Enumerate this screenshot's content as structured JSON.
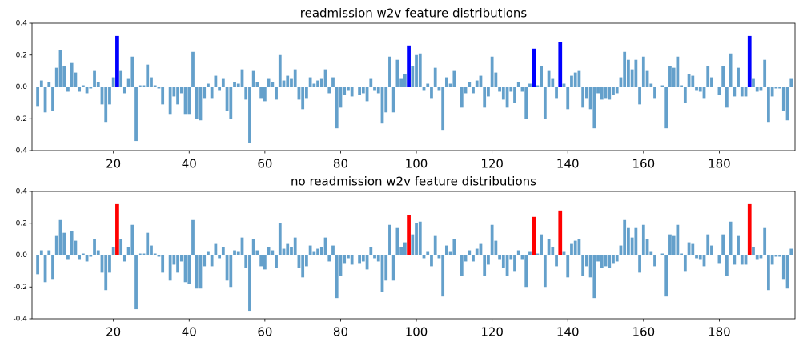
{
  "chart_data": [
    {
      "type": "bar",
      "title": "readmission w2v feature distributions",
      "color": "#64a0cb",
      "highlight_color": "#0000ff",
      "highlight": [
        21,
        98,
        131,
        138,
        188
      ],
      "x": [
        0,
        1,
        2,
        3,
        4,
        5,
        6,
        7,
        8,
        9,
        10,
        11,
        12,
        13,
        14,
        15,
        16,
        17,
        18,
        19,
        20,
        21,
        22,
        23,
        24,
        25,
        26,
        27,
        28,
        29,
        30,
        31,
        32,
        33,
        34,
        35,
        36,
        37,
        38,
        39,
        40,
        41,
        42,
        43,
        44,
        45,
        46,
        47,
        48,
        49,
        50,
        51,
        52,
        53,
        54,
        55,
        56,
        57,
        58,
        59,
        60,
        61,
        62,
        63,
        64,
        65,
        66,
        67,
        68,
        69,
        70,
        71,
        72,
        73,
        74,
        75,
        76,
        77,
        78,
        79,
        80,
        81,
        82,
        83,
        84,
        85,
        86,
        87,
        88,
        89,
        90,
        91,
        92,
        93,
        94,
        95,
        96,
        97,
        98,
        99,
        100,
        101,
        102,
        103,
        104,
        105,
        106,
        107,
        108,
        109,
        110,
        111,
        112,
        113,
        114,
        115,
        116,
        117,
        118,
        119,
        120,
        121,
        122,
        123,
        124,
        125,
        126,
        127,
        128,
        129,
        130,
        131,
        132,
        133,
        134,
        135,
        136,
        137,
        138,
        139,
        140,
        141,
        142,
        143,
        144,
        145,
        146,
        147,
        148,
        149,
        150,
        151,
        152,
        153,
        154,
        155,
        156,
        157,
        158,
        159,
        160,
        161,
        162,
        163,
        164,
        165,
        166,
        167,
        168,
        169,
        170,
        171,
        172,
        173,
        174,
        175,
        176,
        177,
        178,
        179,
        180,
        181,
        182,
        183,
        184,
        185,
        186,
        187,
        188,
        189,
        190,
        191,
        192,
        193,
        194,
        195,
        196,
        197,
        198,
        199
      ],
      "values": [
        -0.12,
        0.04,
        -0.16,
        0.03,
        -0.15,
        0.12,
        0.23,
        0.13,
        -0.03,
        0.15,
        0.09,
        -0.03,
        0.01,
        -0.04,
        -0.01,
        0.1,
        0.03,
        -0.11,
        -0.22,
        -0.11,
        0.06,
        0.32,
        0.1,
        -0.04,
        0.05,
        0.19,
        -0.34,
        0.01,
        0.01,
        0.14,
        0.06,
        0.01,
        -0.01,
        -0.11,
        0.0,
        -0.17,
        -0.06,
        -0.11,
        -0.04,
        -0.17,
        -0.17,
        0.22,
        -0.2,
        -0.21,
        -0.07,
        0.02,
        -0.07,
        0.07,
        -0.02,
        0.05,
        -0.15,
        -0.2,
        0.03,
        0.02,
        0.11,
        -0.08,
        -0.35,
        0.1,
        0.03,
        -0.07,
        -0.09,
        0.05,
        0.03,
        -0.08,
        0.2,
        0.04,
        0.07,
        0.05,
        0.11,
        -0.08,
        -0.14,
        -0.07,
        0.06,
        0.02,
        0.04,
        0.05,
        0.11,
        -0.04,
        0.06,
        -0.26,
        -0.13,
        -0.05,
        -0.02,
        -0.06,
        0.0,
        -0.05,
        -0.04,
        -0.09,
        0.05,
        -0.02,
        -0.04,
        -0.23,
        -0.16,
        0.19,
        -0.16,
        0.17,
        0.05,
        0.08,
        0.26,
        0.13,
        0.2,
        0.21,
        -0.02,
        0.02,
        -0.07,
        0.12,
        -0.02,
        -0.27,
        0.06,
        0.02,
        0.1,
        0.0,
        -0.13,
        -0.04,
        0.03,
        -0.04,
        0.04,
        0.07,
        -0.13,
        -0.06,
        0.19,
        0.09,
        -0.03,
        -0.08,
        -0.13,
        -0.03,
        -0.1,
        0.03,
        -0.03,
        -0.2,
        0.02,
        0.24,
        0.01,
        0.13,
        -0.2,
        0.1,
        0.05,
        -0.07,
        0.28,
        0.02,
        -0.14,
        0.07,
        0.09,
        0.1,
        -0.13,
        -0.07,
        -0.14,
        -0.26,
        -0.04,
        -0.08,
        -0.07,
        -0.08,
        -0.05,
        -0.04,
        0.06,
        0.22,
        0.17,
        0.11,
        0.17,
        -0.11,
        0.19,
        0.1,
        0.02,
        -0.07,
        0.0,
        0.01,
        -0.26,
        0.13,
        0.12,
        0.19,
        0.01,
        -0.1,
        0.08,
        0.07,
        -0.02,
        -0.03,
        -0.07,
        0.13,
        0.06,
        0.0,
        -0.05,
        0.13,
        -0.13,
        0.21,
        -0.06,
        0.12,
        -0.06,
        -0.06,
        0.32,
        0.05,
        -0.03,
        -0.02,
        0.17,
        -0.22,
        -0.06,
        -0.01,
        -0.01,
        -0.15,
        -0.21,
        0.05
      ],
      "xlim": [
        -1.5,
        200
      ],
      "xticks": [
        20,
        40,
        60,
        80,
        100,
        120,
        140,
        160,
        180
      ],
      "ylim": [
        -0.4,
        0.4
      ],
      "yticks": [
        -0.4,
        -0.2,
        {
          "value": 0,
          "label": "0.0"
        },
        0.2,
        0.4
      ]
    },
    {
      "type": "bar",
      "title": "no readmission w2v feature distributions",
      "color": "#64a0cb",
      "highlight_color": "#ff0000",
      "highlight": [
        21,
        98,
        131,
        138,
        188
      ],
      "x": [
        0,
        1,
        2,
        3,
        4,
        5,
        6,
        7,
        8,
        9,
        10,
        11,
        12,
        13,
        14,
        15,
        16,
        17,
        18,
        19,
        20,
        21,
        22,
        23,
        24,
        25,
        26,
        27,
        28,
        29,
        30,
        31,
        32,
        33,
        34,
        35,
        36,
        37,
        38,
        39,
        40,
        41,
        42,
        43,
        44,
        45,
        46,
        47,
        48,
        49,
        50,
        51,
        52,
        53,
        54,
        55,
        56,
        57,
        58,
        59,
        60,
        61,
        62,
        63,
        64,
        65,
        66,
        67,
        68,
        69,
        70,
        71,
        72,
        73,
        74,
        75,
        76,
        77,
        78,
        79,
        80,
        81,
        82,
        83,
        84,
        85,
        86,
        87,
        88,
        89,
        90,
        91,
        92,
        93,
        94,
        95,
        96,
        97,
        98,
        99,
        100,
        101,
        102,
        103,
        104,
        105,
        106,
        107,
        108,
        109,
        110,
        111,
        112,
        113,
        114,
        115,
        116,
        117,
        118,
        119,
        120,
        121,
        122,
        123,
        124,
        125,
        126,
        127,
        128,
        129,
        130,
        131,
        132,
        133,
        134,
        135,
        136,
        137,
        138,
        139,
        140,
        141,
        142,
        143,
        144,
        145,
        146,
        147,
        148,
        149,
        150,
        151,
        152,
        153,
        154,
        155,
        156,
        157,
        158,
        159,
        160,
        161,
        162,
        163,
        164,
        165,
        166,
        167,
        168,
        169,
        170,
        171,
        172,
        173,
        174,
        175,
        176,
        177,
        178,
        179,
        180,
        181,
        182,
        183,
        184,
        185,
        186,
        187,
        188,
        189,
        190,
        191,
        192,
        193,
        194,
        195,
        196,
        197,
        198,
        199
      ],
      "values": [
        -0.12,
        0.03,
        -0.17,
        0.03,
        -0.15,
        0.12,
        0.22,
        0.14,
        -0.03,
        0.15,
        0.09,
        -0.03,
        0.01,
        -0.04,
        -0.01,
        0.1,
        0.03,
        -0.11,
        -0.22,
        -0.11,
        0.05,
        0.32,
        0.1,
        -0.04,
        0.05,
        0.19,
        -0.34,
        0.01,
        0.01,
        0.14,
        0.06,
        0.01,
        -0.01,
        -0.11,
        0.0,
        -0.16,
        -0.06,
        -0.11,
        -0.04,
        -0.17,
        -0.18,
        0.22,
        -0.21,
        -0.21,
        -0.07,
        0.02,
        -0.07,
        0.07,
        -0.02,
        0.05,
        -0.16,
        -0.2,
        0.03,
        0.02,
        0.11,
        -0.08,
        -0.35,
        0.1,
        0.03,
        -0.07,
        -0.09,
        0.05,
        0.03,
        -0.08,
        0.2,
        0.04,
        0.07,
        0.05,
        0.11,
        -0.08,
        -0.14,
        -0.07,
        0.06,
        0.02,
        0.04,
        0.05,
        0.11,
        -0.04,
        0.06,
        -0.27,
        -0.13,
        -0.05,
        -0.02,
        -0.06,
        0.0,
        -0.05,
        -0.04,
        -0.09,
        0.05,
        -0.02,
        -0.04,
        -0.23,
        -0.16,
        0.19,
        -0.16,
        0.17,
        0.05,
        0.08,
        0.25,
        0.13,
        0.2,
        0.21,
        -0.02,
        0.02,
        -0.07,
        0.12,
        -0.02,
        -0.26,
        0.06,
        0.02,
        0.1,
        0.0,
        -0.13,
        -0.04,
        0.03,
        -0.04,
        0.04,
        0.07,
        -0.13,
        -0.06,
        0.19,
        0.09,
        -0.03,
        -0.08,
        -0.13,
        -0.03,
        -0.1,
        0.03,
        -0.03,
        -0.2,
        0.02,
        0.24,
        0.01,
        0.13,
        -0.2,
        0.1,
        0.05,
        -0.07,
        0.28,
        0.02,
        -0.14,
        0.07,
        0.09,
        0.1,
        -0.13,
        -0.07,
        -0.14,
        -0.27,
        -0.04,
        -0.08,
        -0.07,
        -0.08,
        -0.05,
        -0.04,
        0.06,
        0.22,
        0.17,
        0.11,
        0.17,
        -0.11,
        0.19,
        0.1,
        0.02,
        -0.07,
        0.0,
        0.01,
        -0.26,
        0.13,
        0.12,
        0.19,
        0.01,
        -0.1,
        0.08,
        0.07,
        -0.02,
        -0.03,
        -0.07,
        0.13,
        0.06,
        0.0,
        -0.05,
        0.13,
        -0.13,
        0.21,
        -0.06,
        0.12,
        -0.06,
        -0.06,
        0.32,
        0.05,
        -0.03,
        -0.02,
        0.17,
        -0.22,
        -0.06,
        -0.01,
        -0.01,
        -0.15,
        -0.21,
        0.04
      ],
      "xlim": [
        -1.5,
        200
      ],
      "xticks": [
        20,
        40,
        60,
        80,
        100,
        120,
        140,
        160,
        180
      ],
      "ylim": [
        -0.4,
        0.4
      ],
      "yticks": [
        -0.4,
        -0.2,
        {
          "value": 0,
          "label": "0.0"
        },
        0.2,
        0.4
      ]
    }
  ]
}
